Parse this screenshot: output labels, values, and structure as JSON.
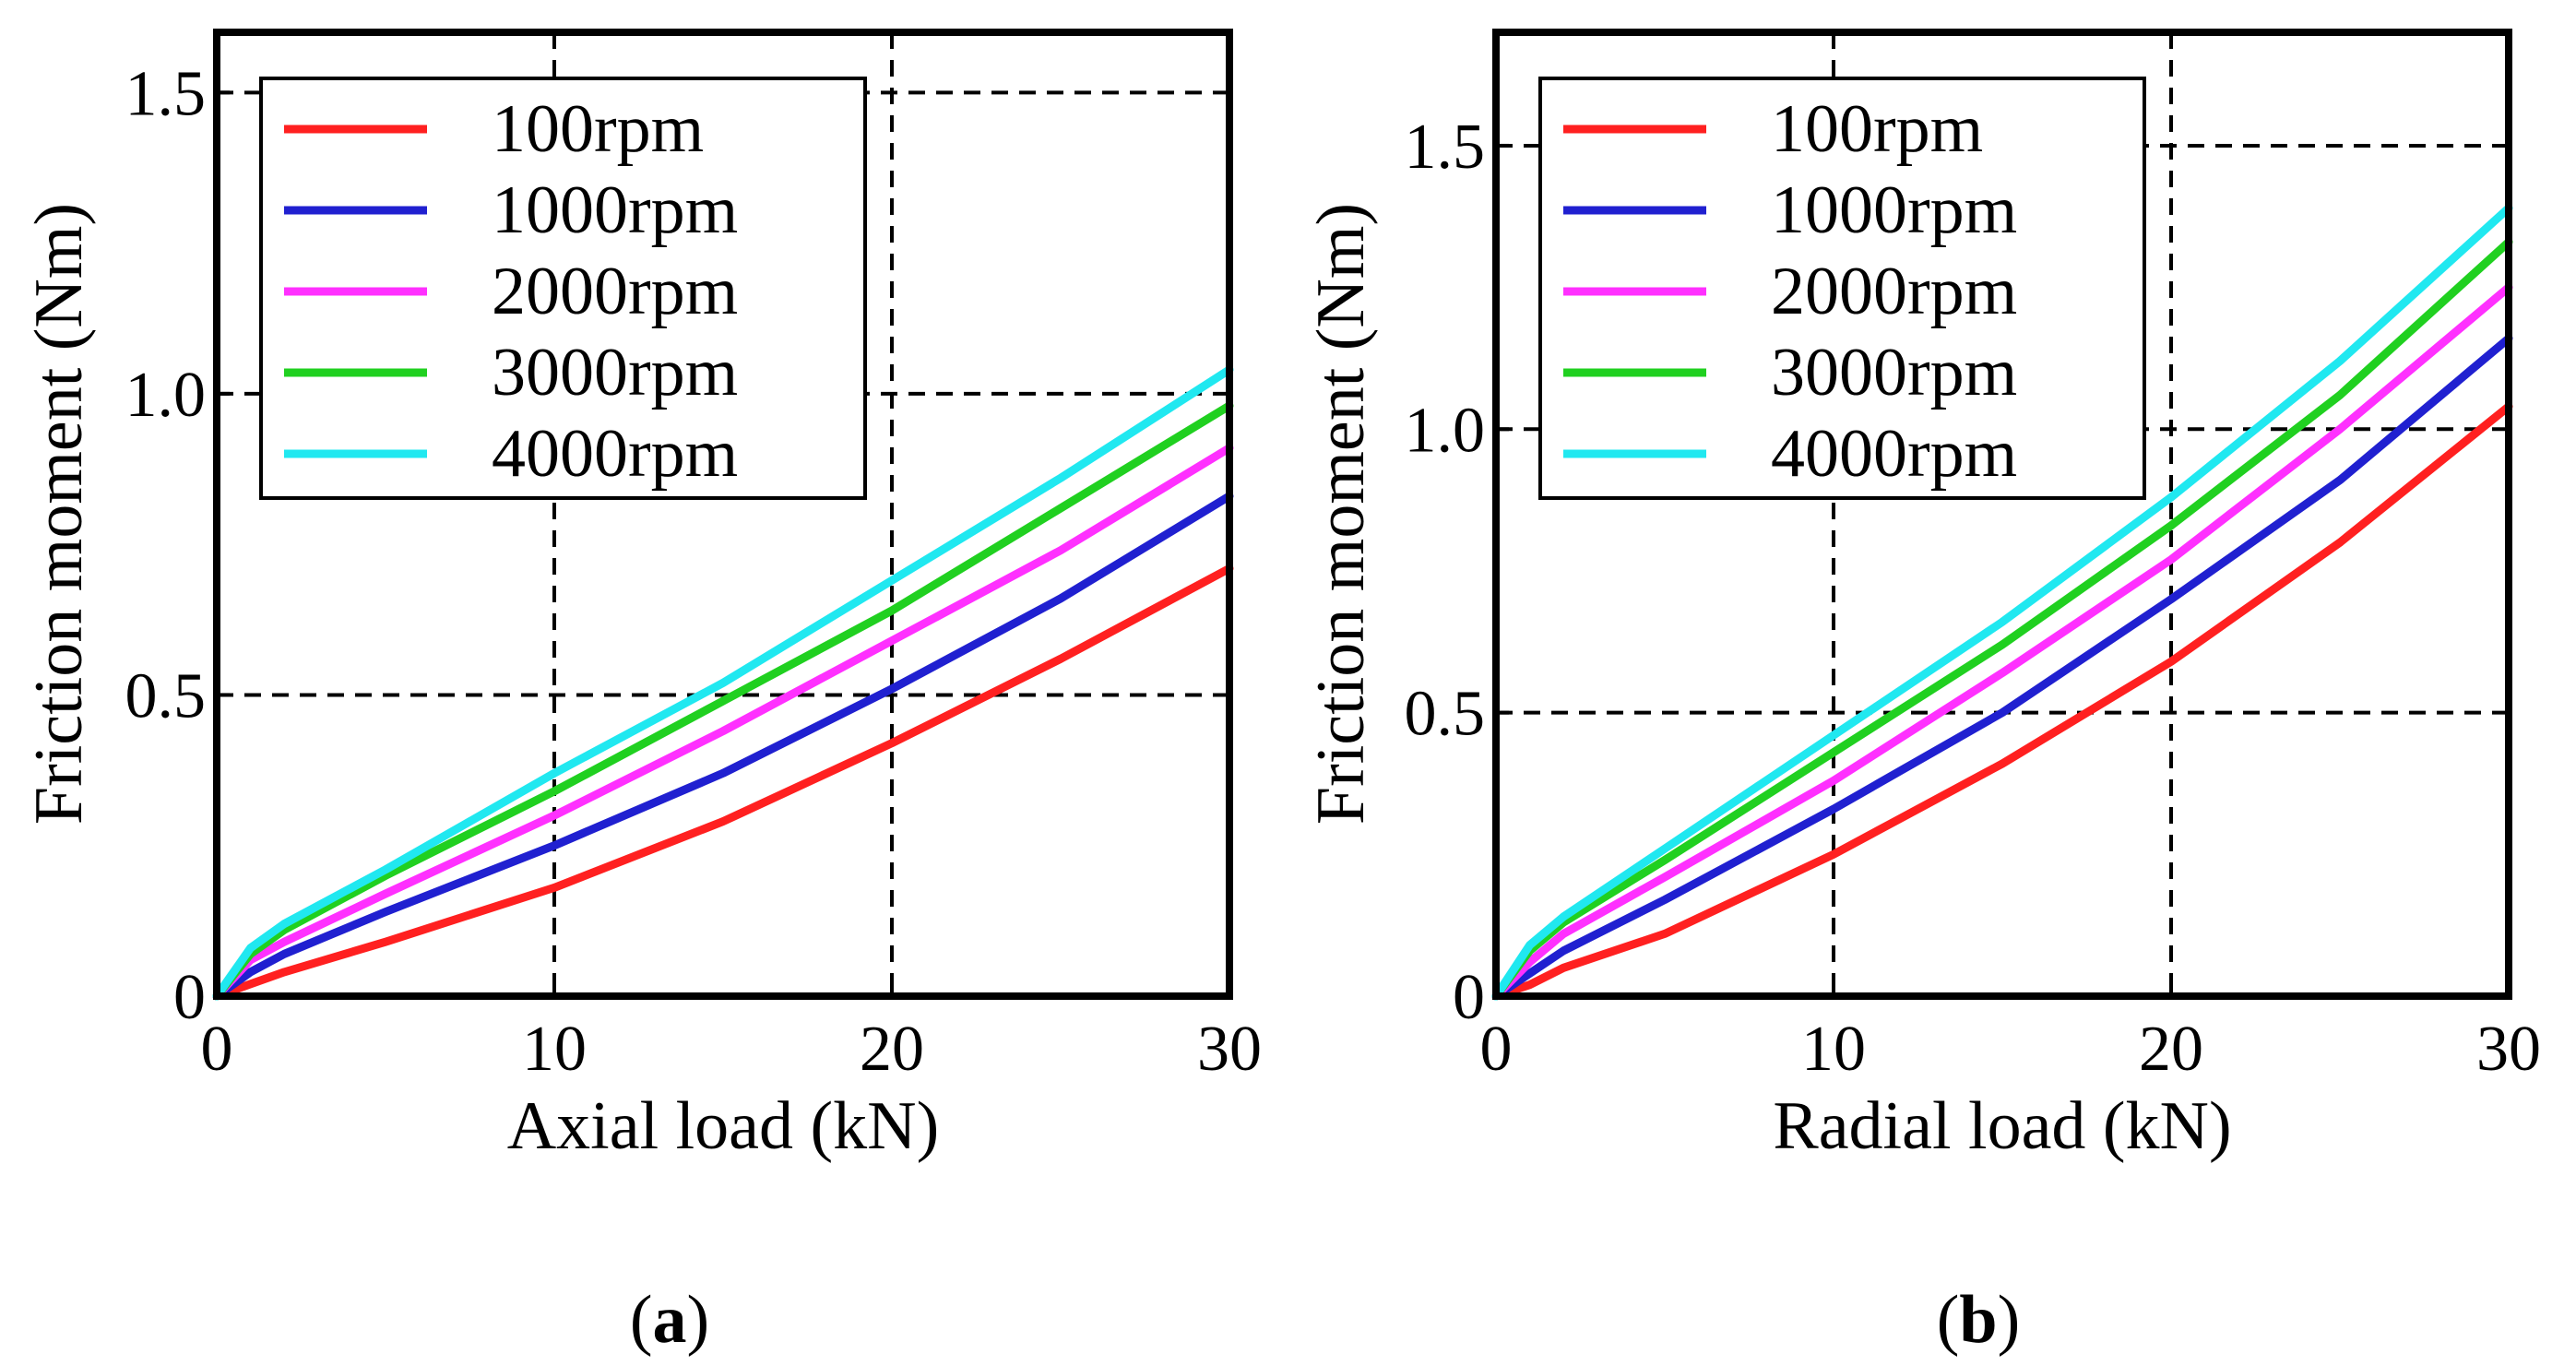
{
  "chart_data": [
    {
      "type": "line",
      "panel_label": "a",
      "xlabel": "Axial load (kN)",
      "ylabel": "Friction moment (Nm)",
      "xlim": [
        0,
        30
      ],
      "ylim": [
        0,
        1.6
      ],
      "xticks": [
        0,
        10,
        20,
        30
      ],
      "xtick_labels": [
        "0",
        "10",
        "20",
        "30"
      ],
      "yticks": [
        0,
        0.5,
        1.0,
        1.5
      ],
      "ytick_labels": [
        "0",
        "0.5",
        "1.0",
        "1.5"
      ],
      "grid": true,
      "legend_position": "top-left",
      "x": [
        0,
        1,
        2,
        5,
        10,
        15,
        20,
        25,
        30
      ],
      "series": [
        {
          "name": "100rpm",
          "color": "#ff2020",
          "values": [
            0,
            0.02,
            0.04,
            0.09,
            0.18,
            0.29,
            0.42,
            0.56,
            0.71
          ]
        },
        {
          "name": "1000rpm",
          "color": "#2020d0",
          "values": [
            0,
            0.04,
            0.07,
            0.14,
            0.25,
            0.37,
            0.51,
            0.66,
            0.83
          ]
        },
        {
          "name": "2000rpm",
          "color": "#ff30ff",
          "values": [
            0,
            0.06,
            0.09,
            0.17,
            0.3,
            0.44,
            0.59,
            0.74,
            0.91
          ]
        },
        {
          "name": "3000rpm",
          "color": "#20d020",
          "values": [
            0,
            0.07,
            0.11,
            0.2,
            0.34,
            0.49,
            0.64,
            0.81,
            0.98
          ]
        },
        {
          "name": "4000rpm",
          "color": "#20e8f0",
          "values": [
            0,
            0.08,
            0.12,
            0.21,
            0.37,
            0.52,
            0.69,
            0.86,
            1.04
          ]
        }
      ]
    },
    {
      "type": "line",
      "panel_label": "b",
      "xlabel": "Radial load (kN)",
      "ylabel": "Friction moment (Nm)",
      "xlim": [
        0,
        30
      ],
      "ylim": [
        0,
        1.7
      ],
      "xticks": [
        0,
        10,
        20,
        30
      ],
      "xtick_labels": [
        "0",
        "10",
        "20",
        "30"
      ],
      "yticks": [
        0,
        0.5,
        1.0,
        1.5
      ],
      "ytick_labels": [
        "0",
        "0.5",
        "1.0",
        "1.5"
      ],
      "grid": true,
      "legend_position": "top-left",
      "x": [
        0,
        1,
        2,
        5,
        10,
        15,
        20,
        25,
        30
      ],
      "series": [
        {
          "name": "100rpm",
          "color": "#ff2020",
          "values": [
            0,
            0.02,
            0.05,
            0.11,
            0.25,
            0.41,
            0.59,
            0.8,
            1.04
          ]
        },
        {
          "name": "1000rpm",
          "color": "#2020d0",
          "values": [
            0,
            0.04,
            0.08,
            0.17,
            0.33,
            0.5,
            0.7,
            0.91,
            1.16
          ]
        },
        {
          "name": "2000rpm",
          "color": "#ff30ff",
          "values": [
            0,
            0.06,
            0.11,
            0.21,
            0.38,
            0.57,
            0.77,
            1.0,
            1.25
          ]
        },
        {
          "name": "3000rpm",
          "color": "#20d020",
          "values": [
            0,
            0.08,
            0.13,
            0.24,
            0.43,
            0.62,
            0.83,
            1.06,
            1.33
          ]
        },
        {
          "name": "4000rpm",
          "color": "#20e8f0",
          "values": [
            0,
            0.09,
            0.14,
            0.26,
            0.46,
            0.66,
            0.88,
            1.12,
            1.39
          ]
        }
      ]
    }
  ]
}
